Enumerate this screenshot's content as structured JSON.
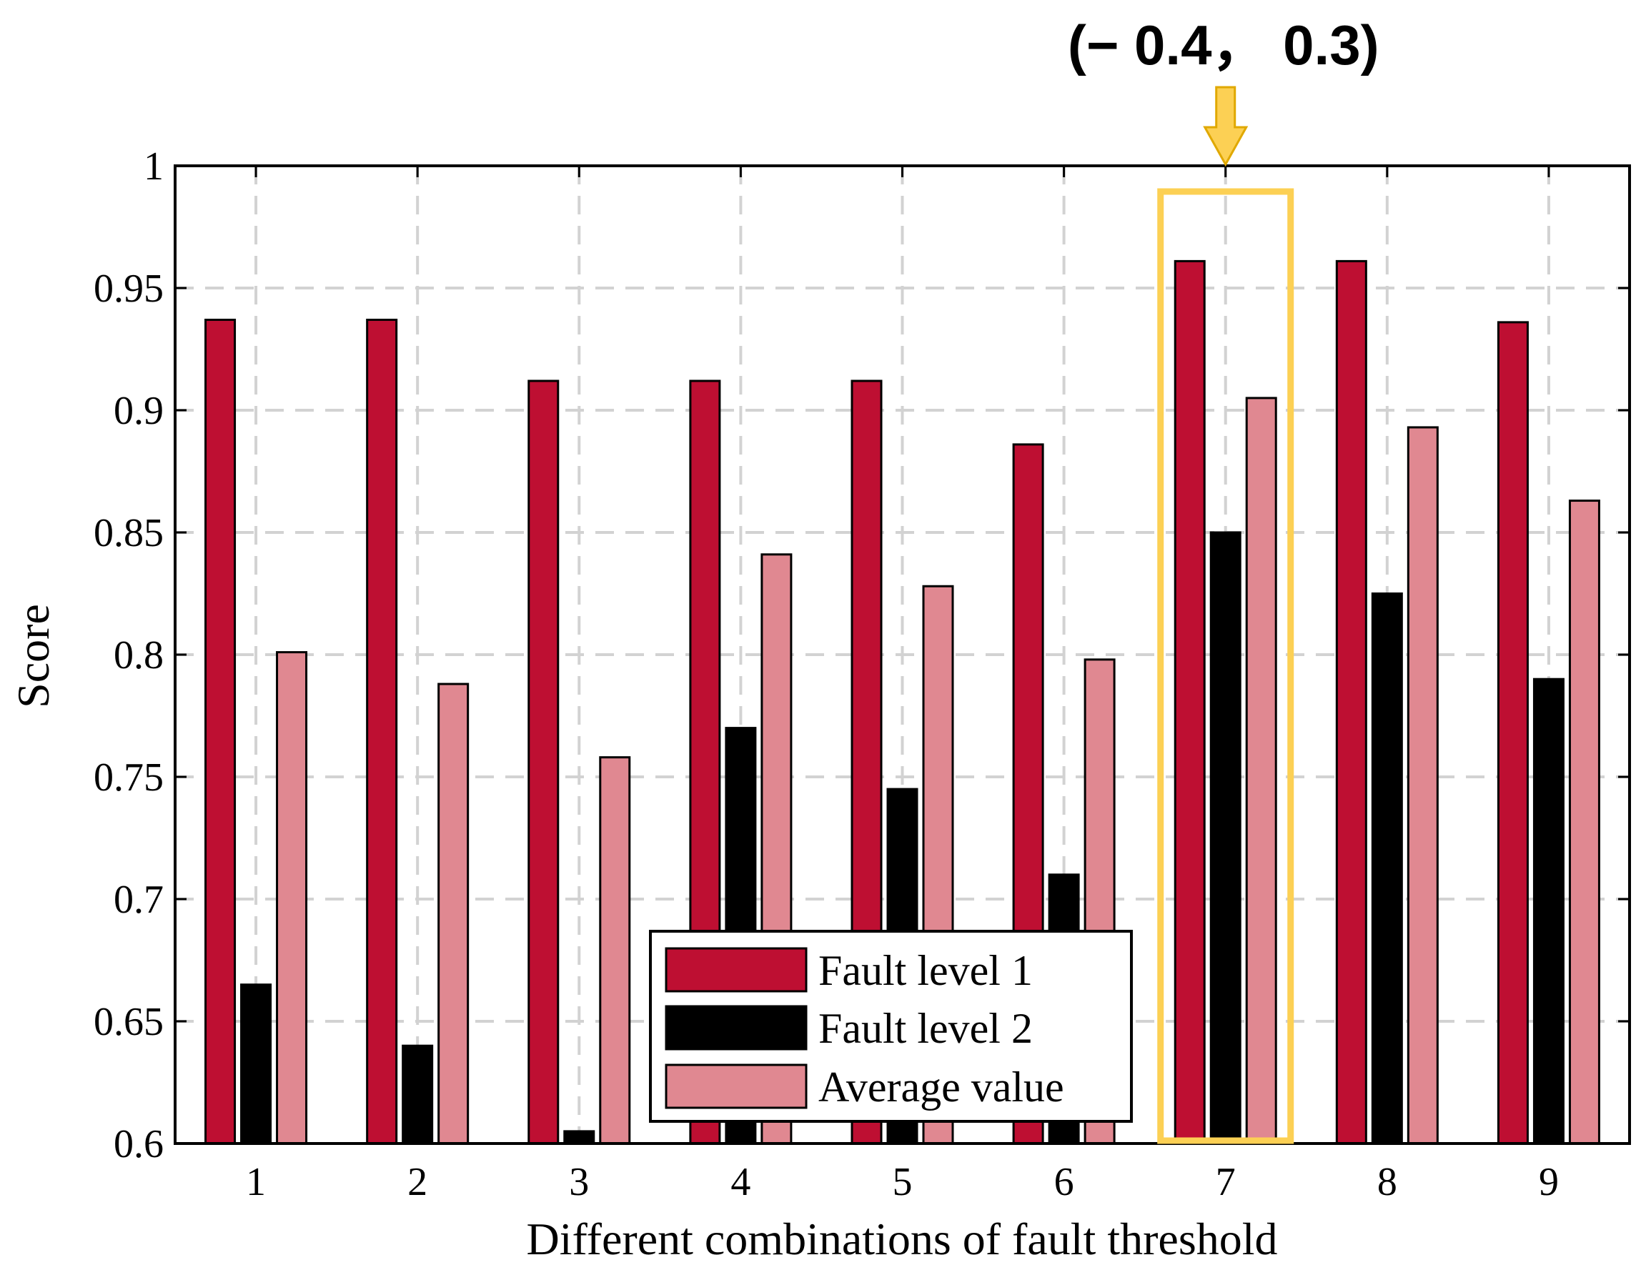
{
  "chart_data": {
    "type": "bar",
    "title": "",
    "xlabel": "Different combinations of fault threshold",
    "ylabel": "Score",
    "categories": [
      "1",
      "2",
      "3",
      "4",
      "5",
      "6",
      "7",
      "8",
      "9"
    ],
    "ylim": [
      0.6,
      1.0
    ],
    "yticks": [
      "0.6",
      "0.65",
      "0.7",
      "0.75",
      "0.8",
      "0.85",
      "0.9",
      "0.95",
      "1"
    ],
    "grid": true,
    "legend_position": "bottom-center",
    "series": [
      {
        "name": "Fault level 1",
        "color": "#be0f32",
        "values": [
          0.937,
          0.937,
          0.912,
          0.912,
          0.912,
          0.886,
          0.961,
          0.961,
          0.936
        ]
      },
      {
        "name": "Fault level 2",
        "color": "#000000",
        "values": [
          0.665,
          0.64,
          0.605,
          0.77,
          0.745,
          0.71,
          0.85,
          0.825,
          0.79
        ]
      },
      {
        "name": "Average value",
        "color": "#e08891",
        "values": [
          0.801,
          0.788,
          0.758,
          0.841,
          0.828,
          0.798,
          0.905,
          0.893,
          0.863
        ]
      }
    ],
    "highlight": {
      "category": "7",
      "label": "(− 0.4， 0.3)",
      "color": "#fcd054"
    }
  }
}
